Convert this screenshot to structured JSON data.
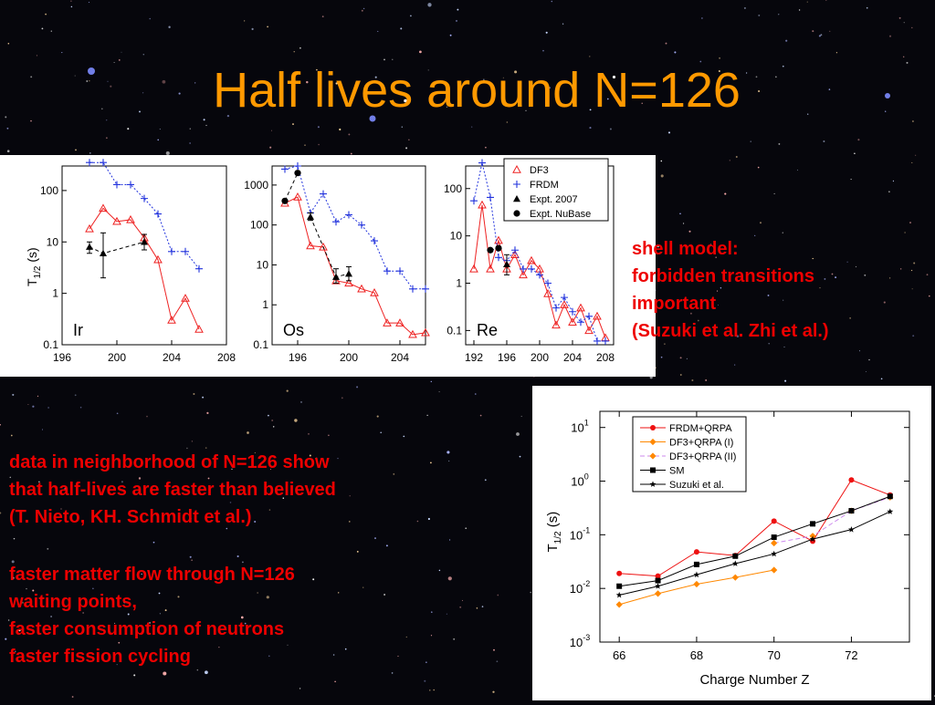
{
  "slide": {
    "title": "Half lives around N=126",
    "notes_right": [
      "shell model:",
      "forbidden transitions",
      "important",
      "(Suzuki et al. Zhi et al.)"
    ],
    "notes_left": [
      "data in neighborhood of N=126 show",
      "that half-lives are faster than believed",
      "(T. Nieto, KH. Schmidt et al.)"
    ],
    "notes_left2": [
      "faster matter flow through N=126",
      "waiting points,",
      "faster consumption of neutrons",
      "faster fission cycling"
    ],
    "colors": {
      "title": "#ff9900",
      "notes": "#ee0000",
      "df3": "#ee2222",
      "frdm": "#2233dd",
      "expt": "#000000"
    }
  },
  "chart_data": [
    {
      "type": "scatter",
      "label": "Ir",
      "ylabel_main": "T",
      "ylabel_sub": "1/2",
      "ylabel_unit": "(s)",
      "yscale": "log",
      "xlim": [
        196,
        208
      ],
      "ylim": [
        0.1,
        300
      ],
      "xticks": [
        196,
        200,
        204,
        208
      ],
      "yticks": [
        0.1,
        1,
        10,
        100
      ],
      "ytick_labels": [
        "0.1",
        "1",
        "10",
        "100"
      ],
      "series": [
        {
          "key": "df3",
          "marker": "triangle-open",
          "x": [
            198,
            199,
            200,
            201,
            202,
            203,
            204,
            205,
            206
          ],
          "y": [
            18,
            45,
            25,
            27,
            12,
            4.5,
            0.3,
            0.8,
            0.2
          ]
        },
        {
          "key": "frdm",
          "marker": "plus",
          "x": [
            198,
            199,
            200,
            201,
            202,
            203,
            204,
            205,
            206
          ],
          "y": [
            350,
            350,
            130,
            130,
            70,
            35,
            6.5,
            6.5,
            3
          ]
        },
        {
          "key": "expt2007",
          "marker": "triangle-filled",
          "x": [
            198,
            199,
            202
          ],
          "y": [
            8,
            6,
            10
          ],
          "yerr_low": [
            6,
            2,
            7
          ],
          "yerr_high": [
            10,
            15,
            14
          ]
        }
      ]
    },
    {
      "type": "scatter",
      "label": "Os",
      "yscale": "log",
      "xlim": [
        194,
        206
      ],
      "ylim": [
        0.1,
        3000
      ],
      "xticks": [
        196,
        200,
        204
      ],
      "yticks": [
        0.1,
        1,
        10,
        100,
        1000
      ],
      "ytick_labels": [
        "0.1",
        "1",
        "10",
        "100",
        "1000"
      ],
      "series": [
        {
          "key": "df3",
          "marker": "triangle-open",
          "x": [
            195,
            196,
            197,
            198,
            199,
            200,
            201,
            202,
            203,
            204,
            205,
            206
          ],
          "y": [
            350,
            500,
            30,
            28,
            4,
            3.5,
            2.5,
            2,
            0.35,
            0.35,
            0.18,
            0.2
          ]
        },
        {
          "key": "frdm",
          "marker": "plus",
          "x": [
            195,
            196,
            197,
            198,
            199,
            200,
            201,
            202,
            203,
            204,
            205,
            206
          ],
          "y": [
            2500,
            3000,
            200,
            600,
            120,
            180,
            100,
            40,
            7,
            7,
            2.5,
            2.5
          ]
        },
        {
          "key": "expt2007",
          "marker": "triangle-filled",
          "x": [
            197,
            199,
            200
          ],
          "y": [
            160,
            5,
            6
          ],
          "yerr_low": [
            130,
            3.5,
            4
          ],
          "yerr_high": [
            200,
            8,
            9
          ]
        },
        {
          "key": "nubase",
          "marker": "circle-filled",
          "x": [
            195,
            196
          ],
          "y": [
            400,
            2000
          ]
        }
      ]
    },
    {
      "type": "scatter",
      "label": "Re",
      "yscale": "log",
      "xlim": [
        191,
        209
      ],
      "ylim": [
        0.05,
        300
      ],
      "xticks": [
        192,
        196,
        200,
        204,
        208
      ],
      "yticks": [
        0.1,
        1,
        10,
        100
      ],
      "ytick_labels": [
        "0.1",
        "1",
        "10",
        "100"
      ],
      "series": [
        {
          "key": "df3",
          "marker": "triangle-open",
          "x": [
            192,
            193,
            194,
            195,
            196,
            197,
            198,
            199,
            200,
            201,
            202,
            203,
            204,
            205,
            206,
            207,
            208
          ],
          "y": [
            2,
            45,
            2,
            8,
            2,
            4,
            1.5,
            3,
            2,
            0.6,
            0.13,
            0.35,
            0.15,
            0.3,
            0.1,
            0.2,
            0.07
          ]
        },
        {
          "key": "frdm",
          "marker": "plus",
          "x": [
            192,
            193,
            194,
            195,
            196,
            197,
            198,
            199,
            200,
            201,
            202,
            203,
            204,
            205,
            206,
            207,
            208
          ],
          "y": [
            55,
            350,
            65,
            3.5,
            3,
            5,
            2,
            2,
            1.5,
            1,
            0.3,
            0.5,
            0.25,
            0.15,
            0.2,
            0.06,
            0.06
          ]
        },
        {
          "key": "expt2007",
          "marker": "triangle-filled",
          "x": [
            196
          ],
          "y": [
            2.5
          ],
          "yerr_low": [
            1.5
          ],
          "yerr_high": [
            4
          ]
        },
        {
          "key": "nubase",
          "marker": "circle-filled",
          "x": [
            194,
            195
          ],
          "y": [
            5,
            5.5
          ]
        }
      ],
      "legend": [
        {
          "key": "df3",
          "label": "DF3"
        },
        {
          "key": "frdm",
          "label": "FRDM"
        },
        {
          "key": "expt2007",
          "label": "Expt. 2007"
        },
        {
          "key": "nubase",
          "label": "Expt. NuBase"
        }
      ]
    },
    {
      "type": "line",
      "yscale": "log",
      "xlabel": "Charge Number Z",
      "ylabel_main": "T",
      "ylabel_sub": "1/2",
      "ylabel_unit": "(s)",
      "xlim": [
        65.5,
        73.5
      ],
      "ylim": [
        0.001,
        20
      ],
      "xticks": [
        66,
        68,
        70,
        72
      ],
      "ytick_exps": [
        "-3",
        "-2",
        "-1",
        "0",
        "1"
      ],
      "legend_placement": "top-left",
      "series": [
        {
          "name": "FRDM+QRPA",
          "color": "#ee1111",
          "marker": "circle",
          "dash": "",
          "x": [
            66,
            67,
            68,
            69,
            70,
            71,
            72,
            73
          ],
          "y": [
            0.019,
            0.017,
            0.048,
            0.041,
            0.18,
            0.076,
            1.05,
            0.55
          ]
        },
        {
          "name": "DF3+QRPA (I)",
          "color": "#ff8800",
          "marker": "diamond",
          "dash": "",
          "x": [
            66,
            67,
            68,
            69,
            70
          ],
          "y": [
            0.005,
            0.008,
            0.012,
            0.016,
            0.022
          ]
        },
        {
          "name": "DF3+QRPA (II)",
          "color": "#ff8800",
          "marker": "diamond",
          "dash": "5,3",
          "lineColor": "#cc88ee",
          "x": [
            70,
            71,
            72,
            73
          ],
          "y": [
            0.07,
            0.095,
            0.28,
            0.5
          ]
        },
        {
          "name": "SM",
          "color": "#000000",
          "marker": "square",
          "dash": "",
          "x": [
            66,
            67,
            68,
            69,
            70,
            71,
            72,
            73
          ],
          "y": [
            0.011,
            0.014,
            0.028,
            0.04,
            0.09,
            0.16,
            0.28,
            0.52
          ]
        },
        {
          "name": "Suzuki et al.",
          "color": "#000000",
          "marker": "star",
          "dash": "",
          "x": [
            66,
            67,
            68,
            69,
            70,
            71,
            72,
            73
          ],
          "y": [
            0.0075,
            0.011,
            0.018,
            0.029,
            0.044,
            0.083,
            0.125,
            0.27
          ]
        }
      ]
    }
  ]
}
